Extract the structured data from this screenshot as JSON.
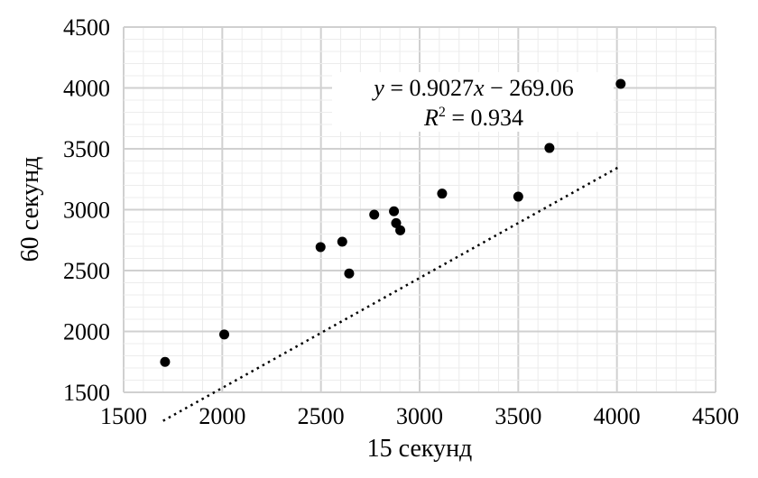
{
  "chart_data": {
    "type": "scatter",
    "xlabel": "15 секунд",
    "ylabel": "60 секунд",
    "xlim": [
      1500,
      4500
    ],
    "ylim": [
      1500,
      4500
    ],
    "xticks": [
      "1500",
      "2000",
      "2500",
      "3000",
      "3500",
      "4000",
      "4500"
    ],
    "yticks": [
      "1500",
      "2000",
      "2500",
      "3000",
      "3500",
      "4000",
      "4500"
    ],
    "grid": true,
    "minor_grid": true,
    "points": [
      {
        "x": 1710,
        "y": 1750
      },
      {
        "x": 2010,
        "y": 1975
      },
      {
        "x": 2498,
        "y": 2693
      },
      {
        "x": 2608,
        "y": 2737
      },
      {
        "x": 2643,
        "y": 2476
      },
      {
        "x": 2770,
        "y": 2959
      },
      {
        "x": 2870,
        "y": 2987
      },
      {
        "x": 2881,
        "y": 2890
      },
      {
        "x": 2902,
        "y": 2831
      },
      {
        "x": 3114,
        "y": 3132
      },
      {
        "x": 3500,
        "y": 3107
      },
      {
        "x": 3658,
        "y": 3507
      },
      {
        "x": 4019,
        "y": 4033
      }
    ],
    "trendline": {
      "type": "linear",
      "slope": 0.9027,
      "intercept": -269.06,
      "x_range": [
        1700,
        4020
      ]
    },
    "annotation": {
      "equation_lhs": "y",
      "equation_rhs": " = 0.9027",
      "equation_x": "x",
      "equation_tail": " − 269.06",
      "r2_label": "R",
      "r2_sup": "2",
      "r2_value": " = 0.934"
    },
    "marker_color": "#000000",
    "grid_color": "#d9d9d9"
  }
}
